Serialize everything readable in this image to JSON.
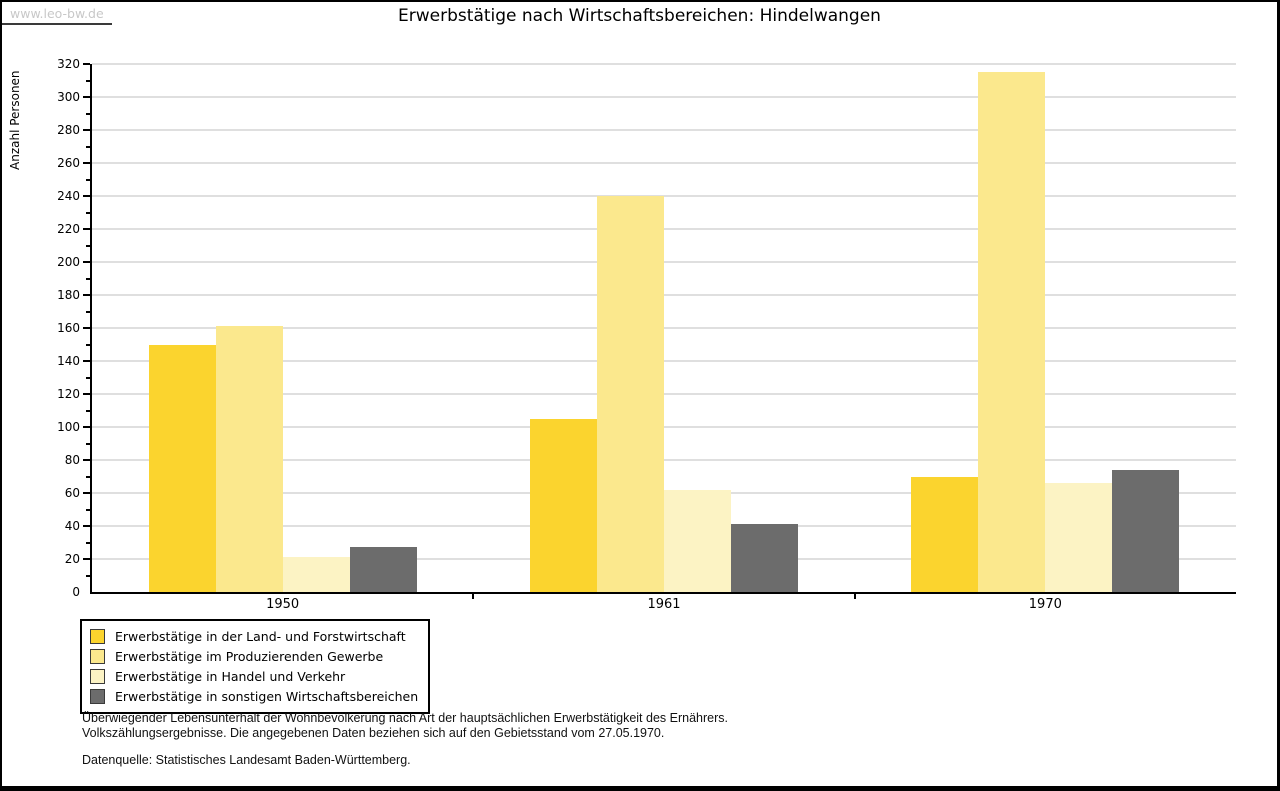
{
  "page": {
    "watermark": "www.leo-bw.de",
    "title": "Erwerbstätige nach Wirtschaftsbereichen: Hindelwangen"
  },
  "chart_data": {
    "type": "bar",
    "title": "Erwerbstätige nach Wirtschaftsbereichen: Hindelwangen",
    "xlabel": "",
    "ylabel": "Anzahl Personen",
    "ylim": [
      0,
      320
    ],
    "ytick_step": 20,
    "yminor_step": 10,
    "grid": true,
    "legend_position": "bottom-left",
    "categories": [
      "1950",
      "1961",
      "1970"
    ],
    "series": [
      {
        "name": "Erwerbstätige in der Land- und Forstwirtschaft",
        "color": "#FBD42E",
        "values": [
          150,
          105,
          70
        ]
      },
      {
        "name": "Erwerbstätige im Produzierenden Gewerbe",
        "color": "#FBE88D",
        "values": [
          161,
          240,
          315
        ]
      },
      {
        "name": "Erwerbstätige in Handel und Verkehr",
        "color": "#FCF3C4",
        "values": [
          21,
          62,
          66
        ]
      },
      {
        "name": "Erwerbstätige in sonstigen Wirtschaftsbereichen",
        "color": "#6C6C6C",
        "values": [
          27,
          41,
          74
        ]
      }
    ],
    "series_keys": [
      "land-forstwirtschaft",
      "produzierendes-gewerbe",
      "handel-verkehr",
      "sonstige-wirtschaftsbereiche"
    ]
  },
  "colors": {
    "grid": "#DFDFDF",
    "axis": "#000000",
    "watermark_text": "#C8C8C8"
  },
  "footnotes": {
    "line1": "Überwiegender Lebensunterhalt der Wohnbevölkerung nach Art der hauptsächlichen Erwerbstätigkeit des Ernährers.",
    "line2": "Volkszählungsergebnisse. Die angegebenen Daten beziehen sich auf den Gebietsstand vom 27.05.1970.",
    "source": "Datenquelle: Statistisches Landesamt Baden-Württemberg."
  }
}
